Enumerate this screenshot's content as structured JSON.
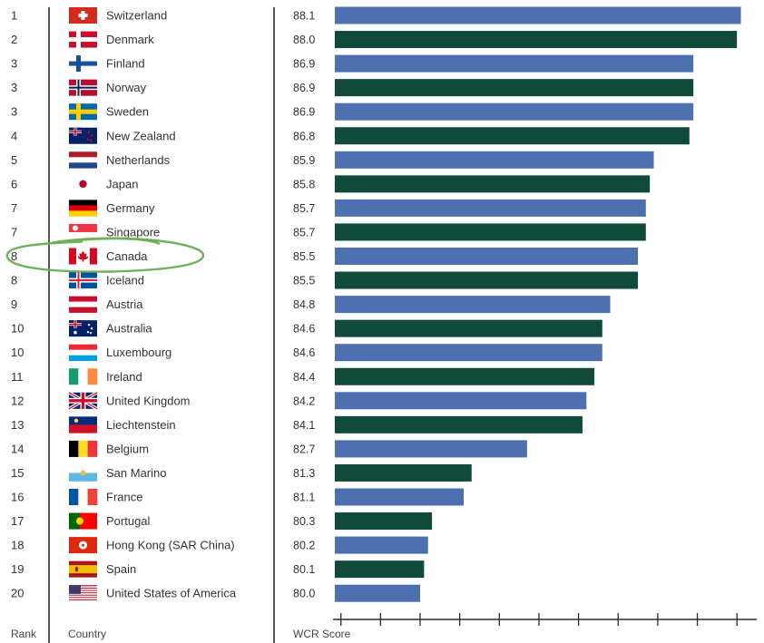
{
  "chart_data": {
    "type": "bar",
    "orientation": "horizontal",
    "columns": {
      "rank": "Rank",
      "country": "Country",
      "score": "WCR Score"
    },
    "colors": {
      "odd": "#4e70b0",
      "even": "#0f4a3b",
      "highlight": "#6fb05a"
    },
    "highlighted_country": "Canada",
    "x_range": [
      77.8,
      88.5
    ],
    "x_ticks": [
      78,
      79,
      80,
      81,
      82,
      83,
      84,
      85,
      86,
      87,
      88
    ],
    "grid": false,
    "rows": [
      {
        "rank": "1",
        "country": "Switzerland",
        "flag": "switzerland-flag-icon",
        "value": 88.1
      },
      {
        "rank": "2",
        "country": "Denmark",
        "flag": "denmark-flag-icon",
        "value": 88.0
      },
      {
        "rank": "3",
        "country": "Finland",
        "flag": "finland-flag-icon",
        "value": 86.9
      },
      {
        "rank": "3",
        "country": "Norway",
        "flag": "norway-flag-icon",
        "value": 86.9
      },
      {
        "rank": "3",
        "country": "Sweden",
        "flag": "sweden-flag-icon",
        "value": 86.9
      },
      {
        "rank": "4",
        "country": "New Zealand",
        "flag": "new-zealand-flag-icon",
        "value": 86.8
      },
      {
        "rank": "5",
        "country": "Netherlands",
        "flag": "netherlands-flag-icon",
        "value": 85.9
      },
      {
        "rank": "6",
        "country": "Japan",
        "flag": "japan-flag-icon",
        "value": 85.8
      },
      {
        "rank": "7",
        "country": "Germany",
        "flag": "germany-flag-icon",
        "value": 85.7
      },
      {
        "rank": "7",
        "country": "Singapore",
        "flag": "singapore-flag-icon",
        "value": 85.7
      },
      {
        "rank": "8",
        "country": "Canada",
        "flag": "canada-flag-icon",
        "value": 85.5
      },
      {
        "rank": "8",
        "country": "Iceland",
        "flag": "iceland-flag-icon",
        "value": 85.5
      },
      {
        "rank": "9",
        "country": "Austria",
        "flag": "austria-flag-icon",
        "value": 84.8
      },
      {
        "rank": "10",
        "country": "Australia",
        "flag": "australia-flag-icon",
        "value": 84.6
      },
      {
        "rank": "10",
        "country": "Luxembourg",
        "flag": "luxembourg-flag-icon",
        "value": 84.6
      },
      {
        "rank": "11",
        "country": "Ireland",
        "flag": "ireland-flag-icon",
        "value": 84.4
      },
      {
        "rank": "12",
        "country": "United Kingdom",
        "flag": "united-kingdom-flag-icon",
        "value": 84.2
      },
      {
        "rank": "13",
        "country": "Liechtenstein",
        "flag": "liechtenstein-flag-icon",
        "value": 84.1
      },
      {
        "rank": "14",
        "country": "Belgium",
        "flag": "belgium-flag-icon",
        "value": 82.7
      },
      {
        "rank": "15",
        "country": "San Marino",
        "flag": "san-marino-flag-icon",
        "value": 81.3
      },
      {
        "rank": "16",
        "country": "France",
        "flag": "france-flag-icon",
        "value": 81.1
      },
      {
        "rank": "17",
        "country": "Portugal",
        "flag": "portugal-flag-icon",
        "value": 80.3
      },
      {
        "rank": "18",
        "country": "Hong Kong (SAR China)",
        "flag": "hong-kong-flag-icon",
        "value": 80.2
      },
      {
        "rank": "19",
        "country": "Spain",
        "flag": "spain-flag-icon",
        "value": 80.1
      },
      {
        "rank": "20",
        "country": "United States of America",
        "flag": "usa-flag-icon",
        "value": 80.0
      }
    ]
  }
}
